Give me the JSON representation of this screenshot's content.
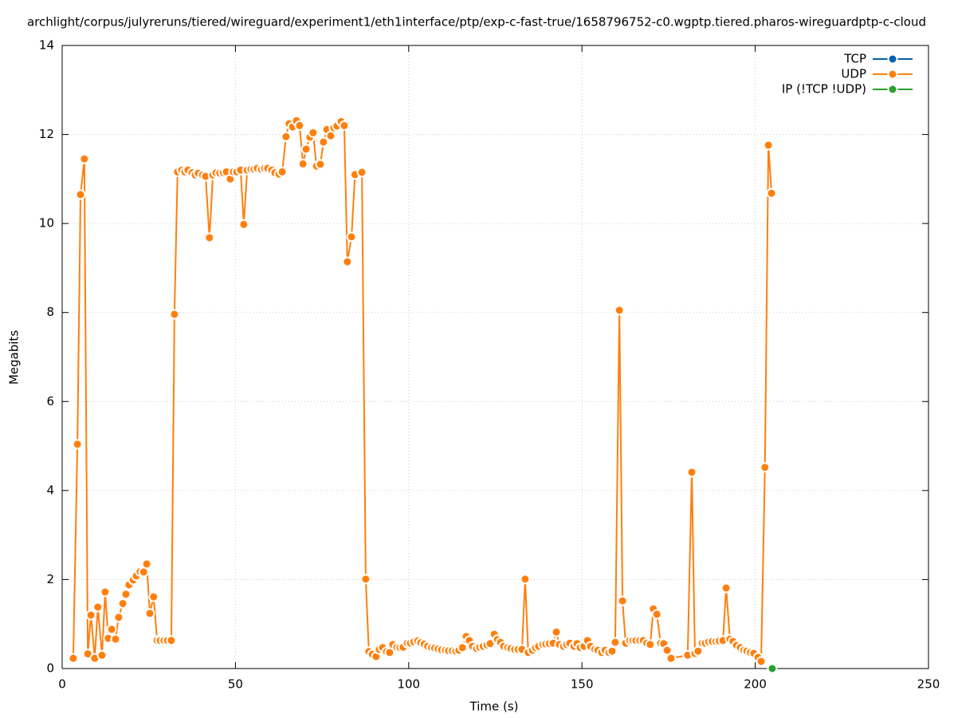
{
  "chart_data": {
    "type": "line",
    "title": "archlight/corpus/julyreruns/tiered/wireguard/experiment1/eth1interface/ptp/exp-c-fast-true/1658796752-c0.wgptp.tiered.pharos-wireguardptp-c-cloud",
    "x_label": "Time (s)",
    "y_label": "Megabits",
    "xlim": [
      0,
      250
    ],
    "xticks": [
      0,
      50,
      100,
      150,
      200,
      250
    ],
    "ylim": [
      0,
      14
    ],
    "yticks": [
      0,
      2,
      4,
      6,
      8,
      10,
      12,
      14
    ],
    "grid": true,
    "legend": "top-right",
    "series": [
      {
        "name": "TCP",
        "color": "#0060ad",
        "x": [],
        "values": []
      },
      {
        "name": "UDP",
        "color": "#ff7f0e",
        "x": [
          3.2,
          4.4,
          5.3,
          6.4,
          7.4,
          8.3,
          9.4,
          10.3,
          11.5,
          12.4,
          13.3,
          14.3,
          15.4,
          16.3,
          17.5,
          18.4,
          19.3,
          20.5,
          21.4,
          22.5,
          23.5,
          24.4,
          25.3,
          26.4,
          27.4,
          28.3,
          29.4,
          30.4,
          31.5,
          32.4,
          33.3,
          34.5,
          35.4,
          36.3,
          37.5,
          38.4,
          39.3,
          40.5,
          41.4,
          42.5,
          43.5,
          44.4,
          45.5,
          46.5,
          47.4,
          48.5,
          49.4,
          50.4,
          51.5,
          52.4,
          53.4,
          54.5,
          55.4,
          56.3,
          57.5,
          58.4,
          59.3,
          60.5,
          61.4,
          62.6,
          63.5,
          64.6,
          65.5,
          66.5,
          67.6,
          68.5,
          69.5,
          70.4,
          71.5,
          72.4,
          73.4,
          74.5,
          75.4,
          76.4,
          77.5,
          78.4,
          79.3,
          80.5,
          81.4,
          82.3,
          83.5,
          84.5,
          86.5,
          87.6,
          88.5,
          89.5,
          90.6,
          91.5,
          92.5,
          93.6,
          94.5,
          95.4,
          96.6,
          97.5,
          98.4,
          99.6,
          100.5,
          101.5,
          102.6,
          103.5,
          104.5,
          105.5,
          106.6,
          107.5,
          108.5,
          109.5,
          110.6,
          111.5,
          112.6,
          113.6,
          114.5,
          115.5,
          116.6,
          117.5,
          118.4,
          119.6,
          120.5,
          121.5,
          122.6,
          123.5,
          124.7,
          125.6,
          126.5,
          127.4,
          128.6,
          129.5,
          130.6,
          131.6,
          132.7,
          133.6,
          134.5,
          135.7,
          136.6,
          137.5,
          138.7,
          139.6,
          140.6,
          141.7,
          142.6,
          143.5,
          144.7,
          145.6,
          146.5,
          147.7,
          148.6,
          149.5,
          150.6,
          151.6,
          152.5,
          153.7,
          154.6,
          155.7,
          156.7,
          157.8,
          158.7,
          159.6,
          160.8,
          161.7,
          162.6,
          163.8,
          164.7,
          165.6,
          166.7,
          167.7,
          168.7,
          169.7,
          170.6,
          171.6,
          172.7,
          173.6,
          174.6,
          175.7,
          180.5,
          181.7,
          182.6,
          183.5,
          184.7,
          185.6,
          186.6,
          187.6,
          188.7,
          189.6,
          190.7,
          191.6,
          192.7,
          193.6,
          194.6,
          195.7,
          196.7,
          197.6,
          198.6,
          199.6,
          200.8,
          201.7,
          202.8,
          203.8,
          204.7
        ],
        "values": [
          0.23,
          5.04,
          10.65,
          11.45,
          0.33,
          1.2,
          0.23,
          1.38,
          0.3,
          1.72,
          0.68,
          0.88,
          0.66,
          1.15,
          1.46,
          1.67,
          1.88,
          1.99,
          2.08,
          2.18,
          2.17,
          2.35,
          1.24,
          1.61,
          0.63,
          0.63,
          0.63,
          0.63,
          0.63,
          7.96,
          11.16,
          11.2,
          11.16,
          11.2,
          11.14,
          11.09,
          11.13,
          11.09,
          11.06,
          9.68,
          11.09,
          11.14,
          11.13,
          11.14,
          11.16,
          11.0,
          11.16,
          11.16,
          11.2,
          9.98,
          11.2,
          11.22,
          11.22,
          11.24,
          11.22,
          11.24,
          11.24,
          11.2,
          11.14,
          11.11,
          11.16,
          11.95,
          12.24,
          12.17,
          12.31,
          12.2,
          11.34,
          11.67,
          11.94,
          12.04,
          11.29,
          11.33,
          11.83,
          12.11,
          11.97,
          12.15,
          12.19,
          12.29,
          12.2,
          9.14,
          9.7,
          11.1,
          11.15,
          2.01,
          0.38,
          0.32,
          0.27,
          0.43,
          0.47,
          0.38,
          0.36,
          0.54,
          0.48,
          0.47,
          0.48,
          0.57,
          0.57,
          0.6,
          0.62,
          0.58,
          0.55,
          0.5,
          0.47,
          0.46,
          0.44,
          0.42,
          0.41,
          0.4,
          0.4,
          0.39,
          0.41,
          0.47,
          0.72,
          0.63,
          0.5,
          0.45,
          0.48,
          0.5,
          0.53,
          0.56,
          0.77,
          0.65,
          0.59,
          0.5,
          0.47,
          0.45,
          0.43,
          0.43,
          0.43,
          2.01,
          0.36,
          0.41,
          0.47,
          0.5,
          0.54,
          0.55,
          0.56,
          0.57,
          0.82,
          0.54,
          0.5,
          0.54,
          0.57,
          0.5,
          0.56,
          0.47,
          0.5,
          0.63,
          0.5,
          0.43,
          0.41,
          0.36,
          0.41,
          0.36,
          0.39,
          0.59,
          8.05,
          1.52,
          0.57,
          0.63,
          0.63,
          0.63,
          0.63,
          0.63,
          0.57,
          0.54,
          1.34,
          1.22,
          0.57,
          0.56,
          0.41,
          0.23,
          0.3,
          4.41,
          0.34,
          0.39,
          0.57,
          0.57,
          0.6,
          0.61,
          0.61,
          0.62,
          0.63,
          1.81,
          0.66,
          0.61,
          0.52,
          0.47,
          0.41,
          0.39,
          0.36,
          0.34,
          0.25,
          0.16,
          4.52,
          11.76,
          10.68
        ]
      },
      {
        "name": "IP (!TCP  !UDP)",
        "color": "#2ca02c",
        "x": [
          204.9
        ],
        "values": [
          0
        ]
      }
    ]
  }
}
